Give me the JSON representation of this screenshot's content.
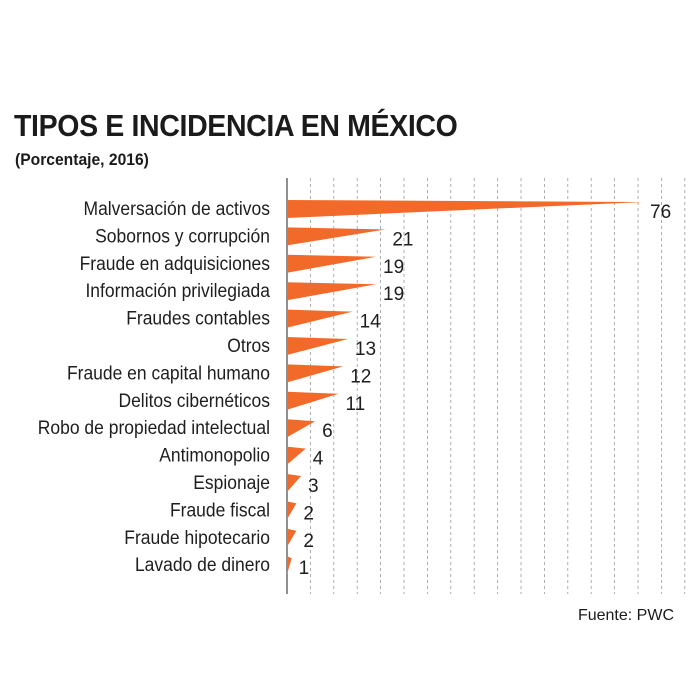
{
  "title": "TIPOS E INCIDENCIA EN MÉXICO",
  "subtitle": "(Porcentaje, 2016)",
  "source": {
    "prefix": "Fuente:",
    "name": "PWC"
  },
  "colors": {
    "bar": "#f26a2a",
    "text": "#1e1e1e",
    "grid": "#9a9a9a",
    "axis": "#555555"
  },
  "chart_data": {
    "type": "bar",
    "orientation": "horizontal",
    "categories": [
      "Malversación de activos",
      "Sobornos y corrupción",
      "Fraude en adquisiciones",
      "Información privilegiada",
      "Fraudes contables",
      "Otros",
      "Fraude en capital humano",
      "Delitos cibernéticos",
      "Robo de propiedad intelectual",
      "Antimonopolio",
      "Espionaje",
      "Fraude fiscal",
      "Fraude hipotecario",
      "Lavado de dinero"
    ],
    "values": [
      76,
      21,
      19,
      19,
      14,
      13,
      12,
      11,
      6,
      4,
      3,
      2,
      2,
      1
    ],
    "xlim": [
      0,
      76
    ],
    "grid": true,
    "data_labels": true,
    "legend": "none"
  }
}
